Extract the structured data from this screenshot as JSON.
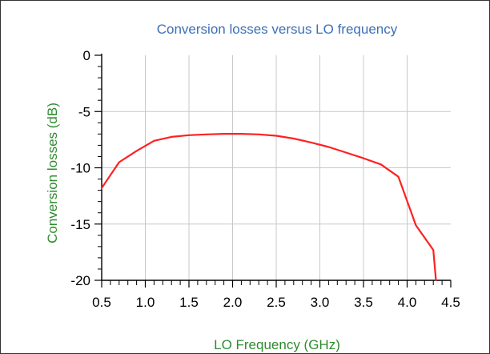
{
  "colors": {
    "title": "#3d6fb6",
    "ylabel": "#2e8b2e",
    "xlabel": "#2e8b2e",
    "series": "#ff2020",
    "grid": "#c8c8c8",
    "axis": "#000000"
  },
  "chart_data": {
    "type": "line",
    "title": "Conversion losses versus LO frequency",
    "xlabel": "LO Frequency (GHz)",
    "ylabel": "Conversion losses (dB)",
    "xlim": [
      0.5,
      4.5
    ],
    "ylim": [
      -20,
      0
    ],
    "xticks": [
      "0.5",
      "1.0",
      "1.5",
      "2.0",
      "2.5",
      "3.0",
      "3.5",
      "4.0",
      "4.5"
    ],
    "yticks": [
      "0",
      "-5",
      "-10",
      "-15",
      "-20"
    ],
    "grid": true,
    "series": [
      {
        "x": [
          0.5,
          0.7,
          0.9,
          1.1,
          1.3,
          1.5,
          1.7,
          1.9,
          2.1,
          2.3,
          2.5,
          2.7,
          2.9,
          3.1,
          3.3,
          3.5,
          3.7,
          3.9,
          4.1,
          4.3,
          4.33
        ],
        "y": [
          -11.8,
          -9.5,
          -8.5,
          -7.6,
          -7.25,
          -7.1,
          -7.03,
          -6.98,
          -6.98,
          -7.03,
          -7.15,
          -7.4,
          -7.75,
          -8.15,
          -8.65,
          -9.15,
          -9.7,
          -10.8,
          -15.1,
          -17.3,
          -20.0
        ]
      }
    ]
  }
}
